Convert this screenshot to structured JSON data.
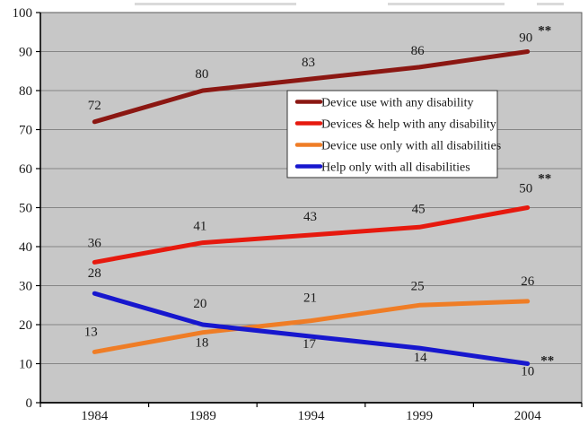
{
  "chart_data": {
    "type": "line",
    "title": "",
    "categories": [
      "1984",
      "1989",
      "1994",
      "1999",
      "2004"
    ],
    "series": [
      {
        "name": "Device use with any disability",
        "color": "#8B1712",
        "values": [
          72,
          80,
          83,
          86,
          90
        ],
        "label_offsets": [
          [
            0,
            -19
          ],
          [
            -1,
            -19
          ],
          [
            -3,
            -19
          ],
          [
            -2,
            -19
          ],
          [
            -2,
            -16
          ]
        ],
        "end_annotation": "**",
        "end_annotation_offset": [
          19,
          -27
        ]
      },
      {
        "name": "Devices & help with any disability",
        "color": "#E6190E",
        "values": [
          36,
          41,
          43,
          45,
          50
        ],
        "label_offsets": [
          [
            0,
            -22
          ],
          [
            -3,
            -19
          ],
          [
            -1,
            -21
          ],
          [
            -1,
            -21
          ],
          [
            -2,
            -22
          ]
        ],
        "end_annotation": "**",
        "end_annotation_offset": [
          19,
          -36
        ]
      },
      {
        "name": "Device use only with all disabilities",
        "color": "#EF7D26",
        "values": [
          13,
          18,
          21,
          25,
          26
        ],
        "label_offsets": [
          [
            -4,
            -23
          ],
          [
            -1,
            11
          ],
          [
            -1,
            -26
          ],
          [
            -2,
            -22
          ],
          [
            0,
            -23
          ]
        ],
        "end_annotation": null,
        "end_annotation_offset": null
      },
      {
        "name": "Help only with all disabilities",
        "color": "#1717CE",
        "values": [
          28,
          20,
          17,
          14,
          10
        ],
        "label_offsets": [
          [
            0,
            -23
          ],
          [
            -3,
            -24
          ],
          [
            -2,
            8
          ],
          [
            1,
            10
          ],
          [
            0,
            8
          ]
        ],
        "end_annotation": "**",
        "end_annotation_offset": [
          22,
          -7
        ]
      }
    ],
    "y_axis": {
      "min": 0,
      "max": 100,
      "interval": 10,
      "tick_labels": [
        "0",
        "10",
        "20",
        "30",
        "40",
        "50",
        "60",
        "70",
        "80",
        "90",
        "100"
      ]
    },
    "x_axis": {
      "tick_labels": [
        "1984",
        "1989",
        "1994",
        "1999",
        "2004"
      ]
    },
    "legend": {
      "position": "inside-upper-right",
      "border": "#333333",
      "background": "#ffffff"
    },
    "grid": "horizontal",
    "plot_background": "#C7C7C7",
    "gridline_color": "#858585",
    "annotation_glyph": "**"
  }
}
